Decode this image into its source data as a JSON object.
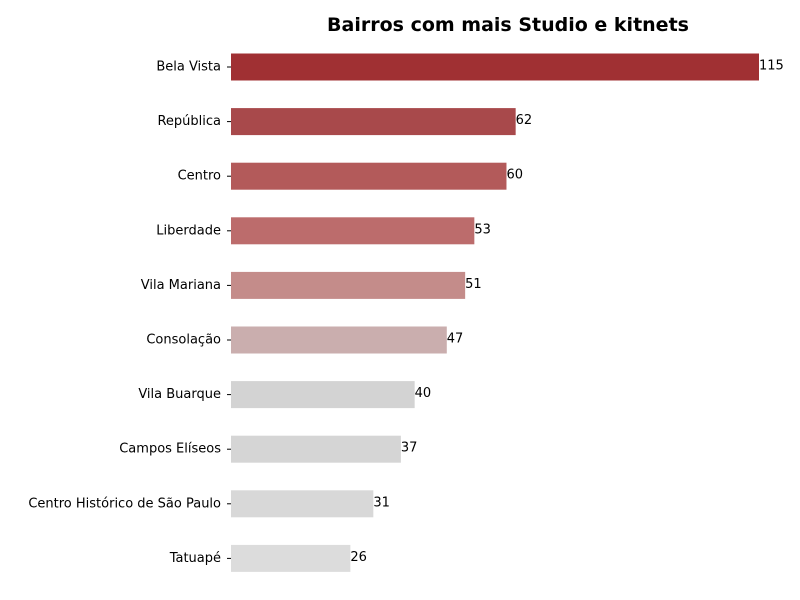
{
  "chart_data": {
    "type": "bar",
    "orientation": "horizontal",
    "title": "Bairros com mais Studio e kitnets",
    "xlabel": "",
    "ylabel": "",
    "xlim": [
      0,
      115
    ],
    "grid": false,
    "legend": "none",
    "categories": [
      "Bela Vista",
      "República",
      "Centro",
      "Liberdade",
      "Vila Mariana",
      "Consolação",
      "Vila Buarque",
      "Campos Elíseos",
      "Centro Histórico de São Paulo",
      "Tatuapé"
    ],
    "values": [
      115,
      62,
      60,
      53,
      51,
      47,
      40,
      37,
      31,
      26
    ],
    "colors": [
      "#a03033",
      "#a8494b",
      "#b35a5a",
      "#bc6c6c",
      "#c48c8a",
      "#caaeae",
      "#d3d3d3",
      "#d5d5d5",
      "#d8d8d8",
      "#dcdcdc"
    ]
  }
}
